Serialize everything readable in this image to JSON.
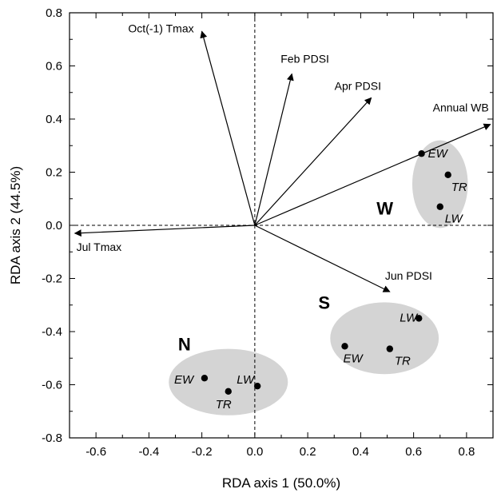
{
  "chart_data": {
    "type": "scatter",
    "title": "",
    "xlabel": "RDA axis 1 (50.0%)",
    "ylabel": "RDA axis 2 (44.5%)",
    "xlim": [
      -0.7,
      0.9
    ],
    "ylim": [
      -0.8,
      0.8
    ],
    "xticks": [
      -0.6,
      -0.4,
      -0.2,
      0.0,
      0.2,
      0.4,
      0.6,
      0.8
    ],
    "yticks": [
      -0.8,
      -0.6,
      -0.4,
      -0.2,
      0.0,
      0.2,
      0.4,
      0.6,
      0.8
    ],
    "xtick_labels": [
      "-0.6",
      "-0.4",
      "-0.2",
      "0.0",
      "0.2",
      "0.4",
      "0.6",
      "0.8"
    ],
    "ytick_labels": [
      "-0.8",
      "-0.6",
      "-0.4",
      "-0.2",
      "0.0",
      "0.2",
      "0.4",
      "0.6",
      "0.8"
    ],
    "zero_lines": true,
    "grid": false,
    "vectors": [
      {
        "label": "Oct(-1) Tmax",
        "x": -0.2,
        "y": 0.73
      },
      {
        "label": "Feb PDSI",
        "x": 0.14,
        "y": 0.57
      },
      {
        "label": "Apr PDSI",
        "x": 0.44,
        "y": 0.48
      },
      {
        "label": "Annual WB",
        "x": 0.89,
        "y": 0.38
      },
      {
        "label": "Jul Tmax",
        "x": -0.68,
        "y": -0.03
      },
      {
        "label": "Jun PDSI",
        "x": 0.51,
        "y": -0.25
      }
    ],
    "groups": [
      {
        "label": "W",
        "ellipse": {
          "cx": 0.7,
          "cy": 0.155,
          "rx": 0.105,
          "ry": 0.165
        },
        "points": [
          {
            "label": "EW",
            "x": 0.63,
            "y": 0.27
          },
          {
            "label": "TR",
            "x": 0.73,
            "y": 0.19
          },
          {
            "label": "LW",
            "x": 0.7,
            "y": 0.07
          }
        ]
      },
      {
        "label": "S",
        "ellipse": {
          "cx": 0.49,
          "cy": -0.425,
          "rx": 0.205,
          "ry": 0.135
        },
        "points": [
          {
            "label": "LW",
            "x": 0.62,
            "y": -0.35
          },
          {
            "label": "EW",
            "x": 0.34,
            "y": -0.455
          },
          {
            "label": "TR",
            "x": 0.51,
            "y": -0.465
          }
        ]
      },
      {
        "label": "N",
        "ellipse": {
          "cx": -0.1,
          "cy": -0.59,
          "rx": 0.225,
          "ry": 0.125
        },
        "points": [
          {
            "label": "EW",
            "x": -0.19,
            "y": -0.575
          },
          {
            "label": "LW",
            "x": 0.01,
            "y": -0.605
          },
          {
            "label": "TR",
            "x": -0.1,
            "y": -0.625
          }
        ]
      }
    ],
    "colors": {
      "ellipse": "#d4d4d4",
      "ink": "#000000"
    }
  }
}
